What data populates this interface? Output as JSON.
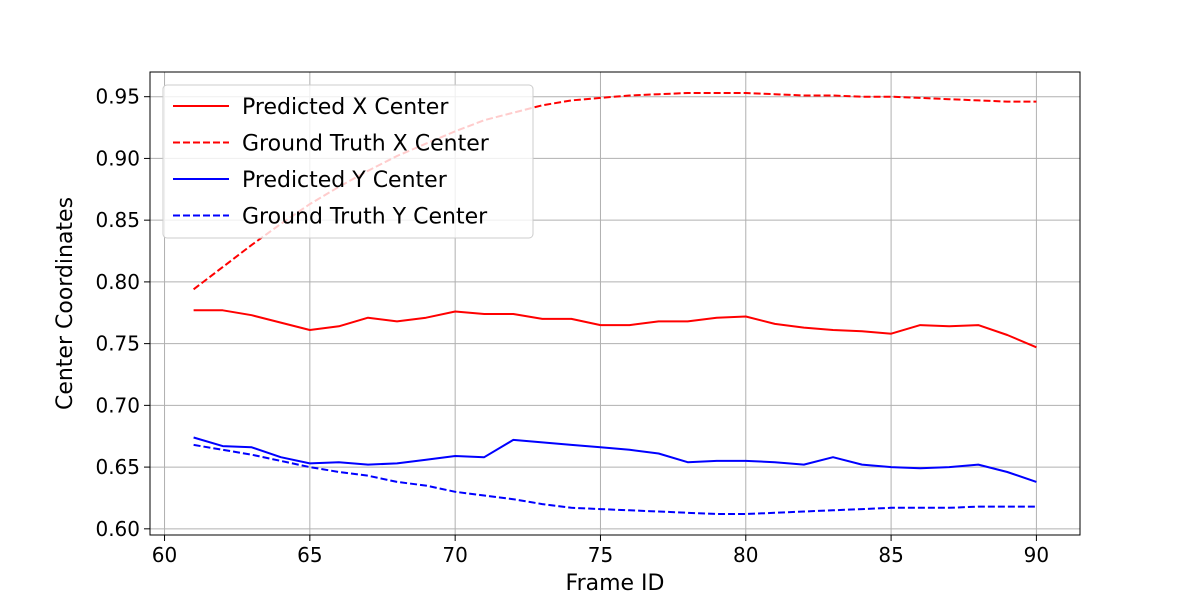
{
  "chart_data": {
    "type": "line",
    "title": "",
    "xlabel": "Frame ID",
    "ylabel": "Center Coordinates",
    "xlim": [
      59.5,
      91.5
    ],
    "ylim": [
      0.595,
      0.97
    ],
    "xticks": [
      60,
      65,
      70,
      75,
      80,
      85,
      90
    ],
    "xtick_labels": [
      "60",
      "65",
      "70",
      "75",
      "80",
      "85",
      "90"
    ],
    "yticks": [
      0.6,
      0.65,
      0.7,
      0.75,
      0.8,
      0.85,
      0.9,
      0.95
    ],
    "ytick_labels": [
      "0.60",
      "0.65",
      "0.70",
      "0.75",
      "0.80",
      "0.85",
      "0.90",
      "0.95"
    ],
    "grid": true,
    "legend_position": "top-left",
    "x": [
      61,
      62,
      63,
      64,
      65,
      66,
      67,
      68,
      69,
      70,
      71,
      72,
      73,
      74,
      75,
      76,
      77,
      78,
      79,
      80,
      81,
      82,
      83,
      84,
      85,
      86,
      87,
      88,
      89,
      90
    ],
    "series": [
      {
        "name": "Predicted X Center",
        "color": "#ff0000",
        "dash": "solid",
        "values": [
          0.777,
          0.777,
          0.773,
          0.767,
          0.761,
          0.764,
          0.771,
          0.768,
          0.771,
          0.776,
          0.774,
          0.774,
          0.77,
          0.77,
          0.765,
          0.765,
          0.768,
          0.768,
          0.771,
          0.772,
          0.766,
          0.763,
          0.761,
          0.76,
          0.758,
          0.765,
          0.764,
          0.765,
          0.757,
          0.747
        ]
      },
      {
        "name": "Ground Truth X Center",
        "color": "#ff0000",
        "dash": "dashed",
        "values": [
          0.794,
          0.812,
          0.83,
          0.847,
          0.863,
          0.877,
          0.89,
          0.902,
          0.912,
          0.922,
          0.931,
          0.937,
          0.943,
          0.947,
          0.949,
          0.951,
          0.952,
          0.953,
          0.953,
          0.953,
          0.952,
          0.951,
          0.951,
          0.95,
          0.95,
          0.949,
          0.948,
          0.947,
          0.946,
          0.946
        ]
      },
      {
        "name": "Predicted Y Center",
        "color": "#0000ff",
        "dash": "solid",
        "values": [
          0.674,
          0.667,
          0.666,
          0.658,
          0.653,
          0.654,
          0.652,
          0.653,
          0.656,
          0.659,
          0.658,
          0.672,
          0.67,
          0.668,
          0.666,
          0.664,
          0.661,
          0.654,
          0.655,
          0.655,
          0.654,
          0.652,
          0.658,
          0.652,
          0.65,
          0.649,
          0.65,
          0.652,
          0.646,
          0.638
        ]
      },
      {
        "name": "Ground Truth Y Center",
        "color": "#0000ff",
        "dash": "dashed",
        "values": [
          0.668,
          0.664,
          0.66,
          0.655,
          0.65,
          0.646,
          0.643,
          0.638,
          0.635,
          0.63,
          0.627,
          0.624,
          0.62,
          0.617,
          0.616,
          0.615,
          0.614,
          0.613,
          0.612,
          0.612,
          0.613,
          0.614,
          0.615,
          0.616,
          0.617,
          0.617,
          0.617,
          0.618,
          0.618,
          0.618
        ]
      }
    ]
  }
}
